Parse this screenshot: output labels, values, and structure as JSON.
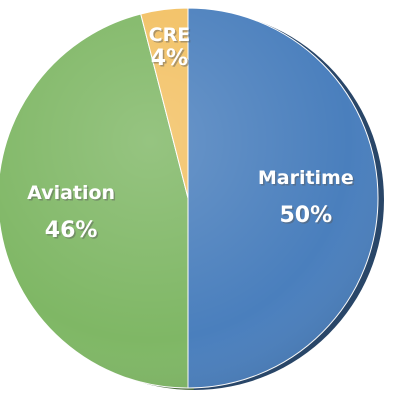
{
  "chart_data": {
    "type": "pie",
    "title": "",
    "slices": [
      {
        "name": "Maritime",
        "value": 50,
        "label": "50%",
        "color": "#4a7fbd"
      },
      {
        "name": "Aviation",
        "value": 46,
        "label": "46%",
        "color": "#7fb765"
      },
      {
        "name": "CRE",
        "value": 4,
        "label": "4%",
        "color": "#f2c062"
      }
    ],
    "legend": "none",
    "start": "12 o'clock",
    "direction": "clockwise",
    "style": "3d-bevel"
  }
}
